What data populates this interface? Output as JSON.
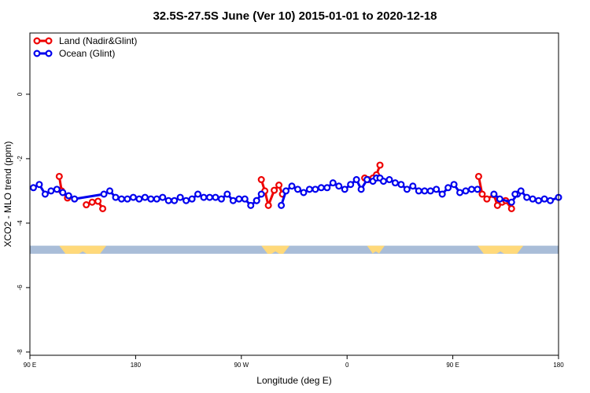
{
  "chart_data": {
    "type": "line",
    "title": "32.5S-27.5S June (Ver 10)   2015-01-01 to 2020-12-18",
    "xlabel": "Longitude (deg E)",
    "ylabel": "XCO2 - MLO trend (ppm)",
    "x_ticks": [
      {
        "value": 90,
        "label": "90 E"
      },
      {
        "value": 180,
        "label": "180"
      },
      {
        "value": 270,
        "label": "90 W"
      },
      {
        "value": 360,
        "label": "0"
      },
      {
        "value": 450,
        "label": "90 E"
      },
      {
        "value": 540,
        "label": "180"
      }
    ],
    "y_ticks": [
      {
        "value": 0,
        "label": "0"
      },
      {
        "value": -2,
        "label": "-2"
      },
      {
        "value": -4,
        "label": "-4"
      },
      {
        "value": -6,
        "label": "-6"
      },
      {
        "value": -8,
        "label": "-8"
      }
    ],
    "xlim": [
      90,
      540
    ],
    "ylim": [
      -8.1,
      1.9
    ],
    "land_mask_band": {
      "y_range": [
        -4.7,
        -4.95
      ],
      "ocean_color": "#a9bdd8",
      "land_color": "#ffd97a",
      "land_segments": [
        [
          115,
          155
        ],
        [
          287,
          311
        ],
        [
          377,
          392
        ],
        [
          471,
          510
        ]
      ]
    },
    "legend": {
      "position": "top-left",
      "entries": [
        {
          "name": "Land (Nadir&Glint)",
          "color": "#ee0000"
        },
        {
          "name": "Ocean (Glint)",
          "color": "#0000ee"
        }
      ]
    },
    "series": [
      {
        "name": "Land (Nadir&Glint)",
        "color": "#ee0000",
        "segments": [
          {
            "x": [
              115,
              117,
              122
            ],
            "y": [
              -2.55,
              -3.0,
              -3.22
            ]
          },
          {
            "x": [
              138,
              143,
              148,
              152
            ],
            "y": [
              -3.43,
              -3.35,
              -3.32,
              -3.55
            ]
          },
          {
            "x": [
              287,
              290,
              293,
              298,
              302,
              305
            ],
            "y": [
              -2.65,
              -3.0,
              -3.45,
              -2.98,
              -2.82,
              -3.1
            ]
          },
          {
            "x": [
              375,
              378,
              382,
              385,
              388
            ],
            "y": [
              -2.6,
              -2.65,
              -2.6,
              -2.5,
              -2.2
            ]
          },
          {
            "x": [
              472,
              475,
              479,
              485,
              488,
              492,
              495,
              500
            ],
            "y": [
              -2.55,
              -3.1,
              -3.25,
              -3.12,
              -3.45,
              -3.35,
              -3.3,
              -3.55
            ]
          }
        ]
      },
      {
        "name": "Ocean (Glint)",
        "color": "#0000ee",
        "segments": [
          {
            "x": [
              93,
              98,
              103,
              108,
              113,
              118,
              123,
              128,
              153,
              158,
              163,
              168,
              173,
              178,
              183,
              188,
              193,
              198,
              203,
              208,
              213,
              218,
              223,
              228,
              233,
              238,
              243,
              248,
              253,
              258,
              263,
              268,
              273,
              278,
              283
            ],
            "y": [
              -2.9,
              -2.8,
              -3.1,
              -3.0,
              -2.95,
              -3.05,
              -3.15,
              -3.25,
              -3.1,
              -3.0,
              -3.2,
              -3.25,
              -3.25,
              -3.2,
              -3.25,
              -3.2,
              -3.25,
              -3.25,
              -3.2,
              -3.3,
              -3.3,
              -3.2,
              -3.3,
              -3.25,
              -3.1,
              -3.2,
              -3.2,
              -3.2,
              -3.25,
              -3.1,
              -3.3,
              -3.25,
              -3.25,
              -3.45,
              -3.3
            ]
          },
          {
            "x": [
              283,
              287
            ],
            "y": [
              -3.3,
              -3.1
            ]
          },
          {
            "x": [
              304,
              308,
              313,
              318,
              323,
              328,
              333,
              338,
              343,
              348,
              353,
              358,
              363,
              368,
              372,
              377,
              382,
              385,
              388,
              391,
              396,
              401,
              406,
              411,
              416,
              421,
              426,
              431,
              436,
              441,
              446,
              451,
              456,
              461,
              466,
              471
            ],
            "y": [
              -3.45,
              -3.0,
              -2.85,
              -2.95,
              -3.05,
              -2.95,
              -2.95,
              -2.9,
              -2.9,
              -2.75,
              -2.85,
              -2.95,
              -2.8,
              -2.65,
              -2.95,
              -2.65,
              -2.7,
              -2.6,
              -2.6,
              -2.7,
              -2.65,
              -2.75,
              -2.8,
              -2.95,
              -2.85,
              -3.0,
              -3.0,
              -3.0,
              -2.95,
              -3.1,
              -2.9,
              -2.8,
              -3.05,
              -3.0,
              -2.95,
              -2.95
            ]
          },
          {
            "x": [
              485,
              490,
              500,
              505
            ],
            "y": [
              -3.1,
              -3.25,
              -3.35,
              -3.1
            ]
          },
          {
            "x": [
              503,
              508,
              513,
              518,
              523,
              528,
              533,
              540
            ],
            "y": [
              -3.1,
              -3.0,
              -3.2,
              -3.25,
              -3.3,
              -3.25,
              -3.3,
              -3.2
            ]
          }
        ]
      }
    ]
  }
}
